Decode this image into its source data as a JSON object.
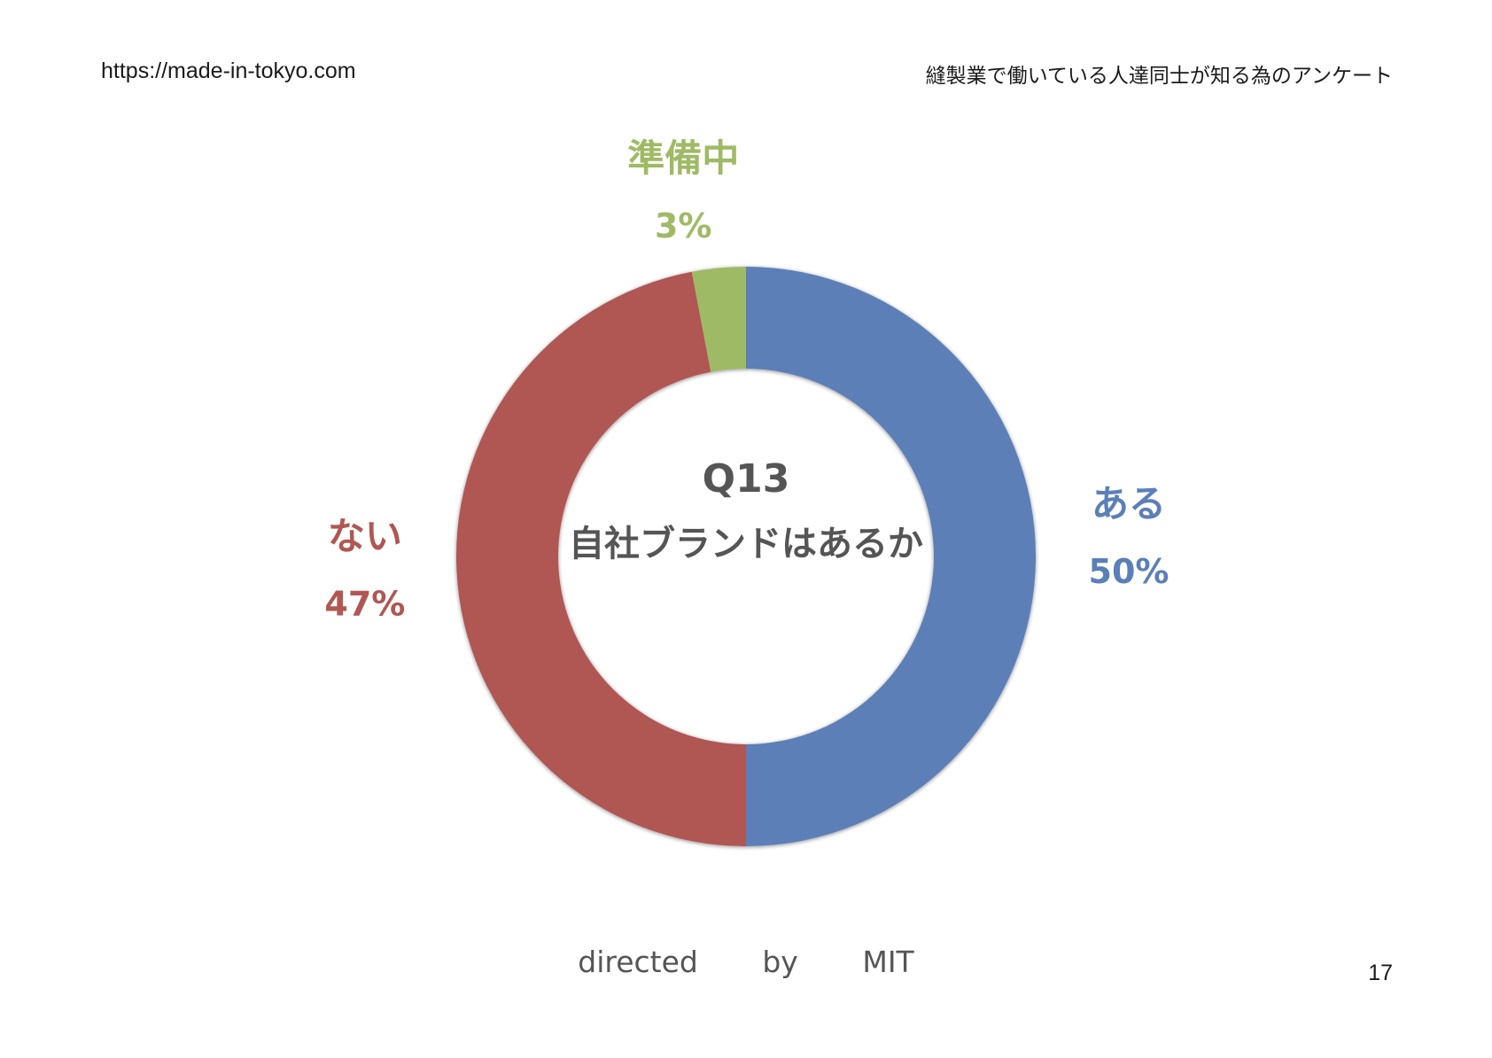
{
  "header": {
    "url": "https://made-in-tokyo.com",
    "title": "縫製業で働いている人達同士が知る為のアンケート"
  },
  "chart_data": {
    "type": "pie",
    "donut": true,
    "center_text": {
      "question": "Q13",
      "question_text": "自社ブランドはあるか"
    },
    "slices": [
      {
        "label": "ある",
        "value": 50,
        "value_label": "50%",
        "color": "#5b7fb8"
      },
      {
        "label": "ない",
        "value": 47,
        "value_label": "47%",
        "color": "#b05752"
      },
      {
        "label": "準備中",
        "value": 3,
        "value_label": "3%",
        "color": "#9fba65"
      }
    ],
    "legend": "none",
    "label_position": "outside"
  },
  "footer": {
    "credit_words": [
      "directed",
      "by",
      "MIT"
    ],
    "page_number": "17"
  }
}
